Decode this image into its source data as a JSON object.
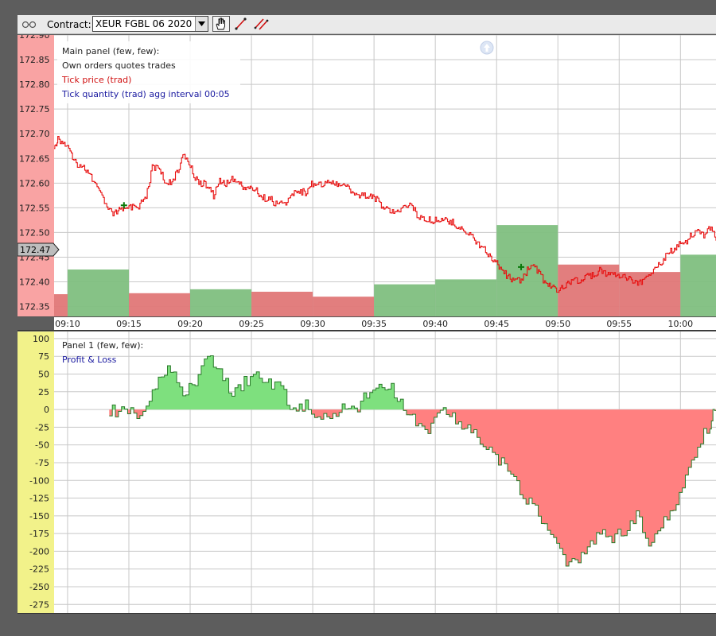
{
  "toolbar": {
    "contract_label": "Contract:",
    "contract_value": "XEUR FGBL 06 2020",
    "icons": [
      "grip-icon",
      "dropdown-arrow-icon",
      "hand-pan-icon",
      "draw-line-icon",
      "draw-multi-line-icon"
    ]
  },
  "main_panel": {
    "legend": [
      "Main panel (few, few):",
      "Own orders quotes trades",
      "Tick price (trad)",
      "Tick quantity (trad) agg interval 00:05"
    ],
    "price_marker": "172.47",
    "scroll_up_icon": "up-arrow-circle-icon"
  },
  "panel1": {
    "legend": [
      "Panel 1 (few, few):",
      "Profit & Loss"
    ]
  },
  "colors": {
    "price_line": "#e81010",
    "buy_bar": "#7fbf7f",
    "sell_bar": "#e07777",
    "profit_fill": "#7ee07e",
    "loss_fill": "#ff8080",
    "main_axis_bg": "#f9a3a3",
    "panel1_axis_bg": "#f2f28a"
  },
  "chart_data": [
    {
      "type": "line",
      "panel": "Main panel",
      "x_tick_labels": [
        "09:10",
        "09:15",
        "09:20",
        "09:25",
        "09:30",
        "09:35",
        "09:40",
        "09:45",
        "09:50",
        "09:55",
        "10:00"
      ],
      "y_tick_labels": [
        "172.90",
        "172.85",
        "172.80",
        "172.75",
        "172.70",
        "172.65",
        "172.60",
        "172.55",
        "172.50",
        "172.45",
        "172.40",
        "172.35"
      ],
      "ylim": [
        172.33,
        172.9
      ],
      "x_range_minutes": [
        8.9,
        10.25
      ],
      "grid": true,
      "series": [
        {
          "name": "Tick price (trad)",
          "x": [
            8.9,
            9.2,
            9.7,
            10.2,
            10.7,
            11.2,
            11.7,
            12.2,
            12.7,
            13.2,
            13.7,
            14.2,
            14.5,
            14.9,
            15.4,
            15.9,
            16.4,
            16.9,
            17.4,
            17.9,
            18.4,
            18.9,
            19.4,
            19.9,
            20.4,
            20.9,
            21.4,
            21.9,
            22.4,
            22.9,
            23.4,
            23.9,
            24.4,
            24.9,
            25.4,
            25.9,
            26.4,
            26.9,
            27.4,
            27.9,
            28.4,
            28.9,
            29.4,
            29.9,
            30.4,
            30.9,
            31.4,
            31.9,
            32.4,
            32.9,
            33.4,
            33.9,
            34.4,
            34.9,
            35.4,
            35.9,
            36.4,
            36.9,
            37.4,
            37.9,
            38.4,
            38.9,
            39.4,
            39.9,
            40.4,
            40.9,
            41.4,
            41.9,
            42.4,
            42.9,
            43.4,
            43.9,
            44.4,
            44.9,
            45.4,
            45.9,
            46.4,
            46.9,
            47.4,
            47.9,
            48.4,
            48.9,
            49.4,
            49.9,
            50.4,
            50.9,
            51.4,
            51.9,
            52.4,
            52.9,
            53.4,
            53.9,
            54.4,
            54.9,
            55.4,
            55.9,
            56.4,
            56.9,
            57.4,
            57.9,
            58.4,
            58.9,
            59.4,
            59.9,
            60.4,
            60.9,
            61.4,
            61.9,
            62.4,
            62.9
          ],
          "y": [
            172.67,
            172.69,
            172.68,
            172.665,
            172.64,
            172.635,
            172.62,
            172.6,
            172.575,
            172.55,
            172.535,
            172.545,
            172.55,
            172.555,
            172.55,
            172.555,
            172.575,
            172.63,
            172.635,
            172.605,
            172.6,
            172.62,
            172.655,
            172.64,
            172.61,
            172.6,
            172.595,
            172.575,
            172.605,
            172.6,
            172.61,
            172.6,
            172.59,
            172.59,
            172.585,
            172.57,
            172.57,
            172.56,
            172.56,
            172.56,
            172.58,
            172.585,
            172.58,
            172.6,
            172.595,
            172.6,
            172.605,
            172.6,
            172.6,
            172.59,
            172.575,
            172.575,
            172.575,
            172.575,
            172.56,
            172.55,
            172.54,
            172.545,
            172.55,
            172.56,
            172.54,
            172.525,
            172.525,
            172.525,
            172.525,
            172.525,
            172.52,
            172.51,
            172.505,
            172.495,
            172.48,
            172.47,
            172.455,
            172.44,
            172.425,
            172.41,
            172.405,
            172.4,
            172.42,
            172.435,
            172.42,
            172.4,
            172.39,
            172.385,
            172.39,
            172.4,
            172.405,
            172.4,
            172.41,
            172.415,
            172.425,
            172.415,
            172.42,
            172.415,
            172.41,
            172.405,
            172.4,
            172.4,
            172.415,
            172.43,
            172.44,
            172.455,
            172.465,
            172.475,
            172.48,
            172.495,
            172.505,
            172.495,
            172.51,
            172.485
          ]
        },
        {
          "name": "Tick quantity (trad) agg interval 00:05",
          "type": "bar",
          "bars": [
            {
              "start": 8.9,
              "end": 10.0,
              "value": 172.375,
              "side": "sell"
            },
            {
              "start": 10.0,
              "end": 15.0,
              "value": 172.425,
              "side": "buy"
            },
            {
              "start": 15.0,
              "end": 20.0,
              "value": 172.377,
              "side": "sell"
            },
            {
              "start": 20.0,
              "end": 25.0,
              "value": 172.385,
              "side": "buy"
            },
            {
              "start": 25.0,
              "end": 30.0,
              "value": 172.38,
              "side": "sell"
            },
            {
              "start": 30.0,
              "end": 35.0,
              "value": 172.37,
              "side": "sell"
            },
            {
              "start": 35.0,
              "end": 40.0,
              "value": 172.395,
              "side": "buy"
            },
            {
              "start": 40.0,
              "end": 45.0,
              "value": 172.405,
              "side": "buy"
            },
            {
              "start": 45.0,
              "end": 50.0,
              "value": 172.515,
              "side": "buy"
            },
            {
              "start": 50.0,
              "end": 55.0,
              "value": 172.435,
              "side": "sell"
            },
            {
              "start": 55.0,
              "end": 60.0,
              "value": 172.42,
              "side": "sell"
            },
            {
              "start": 60.0,
              "end": 62.9,
              "value": 172.455,
              "side": "buy"
            }
          ]
        }
      ],
      "trade_markers": [
        {
          "x": 14.6,
          "y": 172.555,
          "type": "buy"
        },
        {
          "x": 47.0,
          "y": 172.43,
          "type": "buy"
        }
      ]
    },
    {
      "type": "area",
      "panel": "Panel 1",
      "x_tick_labels": [
        "09:10",
        "09:15",
        "09:20",
        "09:25",
        "09:30",
        "09:35",
        "09:40",
        "09:45",
        "09:50",
        "09:55",
        "10:00"
      ],
      "y_tick_labels": [
        "100",
        "75",
        "50",
        "25",
        "0",
        "-25",
        "-50",
        "-75",
        "-100",
        "-125",
        "-150",
        "-175",
        "-200",
        "-225",
        "-250",
        "-275"
      ],
      "ylim": [
        -287,
        110
      ],
      "grid": true,
      "series": [
        {
          "name": "Profit & Loss",
          "x": [
            13.4,
            14.4,
            15.4,
            16.4,
            17.4,
            18.4,
            19.4,
            20.4,
            21.4,
            22.4,
            23.4,
            24.4,
            25.4,
            26.4,
            27.4,
            28.4,
            29.4,
            30.4,
            31.4,
            32.4,
            33.4,
            34.4,
            35.4,
            36.4,
            37.4,
            38.4,
            39.4,
            40.4,
            41.4,
            42.4,
            43.4,
            44.4,
            45.4,
            46.4,
            47.4,
            48.4,
            49.4,
            50.4,
            51.4,
            52.4,
            53.4,
            54.4,
            55.4,
            56.4,
            57.4,
            58.4,
            59.4,
            60.4,
            61.4,
            62.4,
            62.9
          ],
          "y": [
            0,
            -5,
            -5,
            0,
            40,
            60,
            25,
            40,
            75,
            50,
            20,
            40,
            45,
            40,
            30,
            0,
            5,
            -10,
            -10,
            0,
            0,
            20,
            35,
            30,
            0,
            -20,
            -35,
            0,
            -10,
            -25,
            -40,
            -55,
            -75,
            -100,
            -125,
            -150,
            -175,
            -210,
            -220,
            -200,
            -175,
            -180,
            -175,
            -150,
            -190,
            -165,
            -140,
            -100,
            -50,
            -20,
            10
          ]
        }
      ]
    }
  ]
}
